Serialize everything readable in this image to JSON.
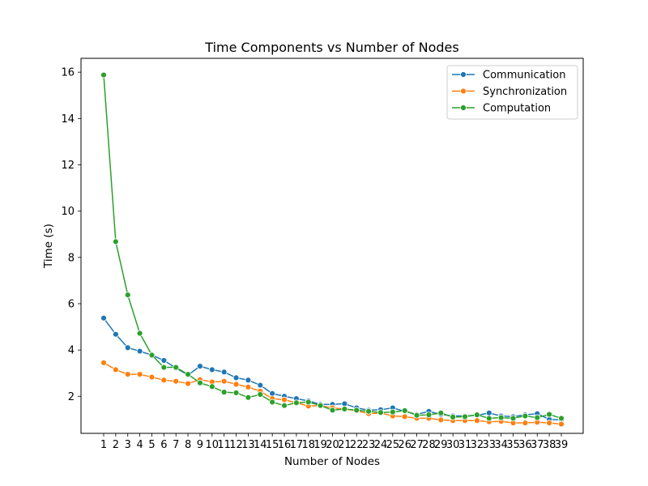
{
  "chart_data": {
    "type": "line",
    "title": "Time Components vs Number of Nodes",
    "xlabel": "Number of Nodes",
    "ylabel": "Time (s)",
    "categories": [
      "1",
      "2",
      "3",
      "4",
      "5",
      "6",
      "7",
      "8",
      "9",
      "10",
      "11",
      "12",
      "13",
      "14",
      "15",
      "16",
      "17",
      "18",
      "19",
      "20",
      "21",
      "22",
      "23",
      "24",
      "25",
      "26",
      "27",
      "28",
      "29",
      "30",
      "31",
      "32",
      "33",
      "34",
      "35",
      "36",
      "37",
      "38",
      "39"
    ],
    "ylim": [
      0.4,
      16.6
    ],
    "yticks": [
      2,
      4,
      6,
      8,
      10,
      12,
      14,
      16
    ],
    "ytick_labels": [
      "2",
      "4",
      "6",
      "8",
      "10",
      "12",
      "14",
      "16"
    ],
    "legend_position": "upper right",
    "grid": false,
    "series": [
      {
        "name": "Communication",
        "color": "#1f77b4",
        "values": [
          5.38,
          4.68,
          4.1,
          3.95,
          3.78,
          3.55,
          3.22,
          2.92,
          3.3,
          3.15,
          3.05,
          2.8,
          2.7,
          2.48,
          2.12,
          2.0,
          1.9,
          1.8,
          1.65,
          1.65,
          1.68,
          1.5,
          1.4,
          1.42,
          1.5,
          1.35,
          1.22,
          1.35,
          1.22,
          1.15,
          1.15,
          1.18,
          1.28,
          1.15,
          1.12,
          1.2,
          1.25,
          1.0,
          0.98
        ]
      },
      {
        "name": "Synchronization",
        "color": "#ff7f0e",
        "values": [
          3.45,
          3.15,
          2.95,
          2.95,
          2.83,
          2.7,
          2.65,
          2.55,
          2.72,
          2.62,
          2.65,
          2.52,
          2.4,
          2.22,
          1.9,
          1.85,
          1.72,
          1.58,
          1.6,
          1.5,
          1.45,
          1.38,
          1.25,
          1.28,
          1.15,
          1.12,
          1.05,
          1.05,
          0.98,
          0.95,
          0.95,
          0.95,
          0.9,
          0.92,
          0.85,
          0.85,
          0.88,
          0.85,
          0.8
        ]
      },
      {
        "name": "Computation",
        "color": "#2ca02c",
        "values": [
          15.88,
          8.68,
          6.38,
          4.72,
          3.78,
          3.25,
          3.25,
          2.95,
          2.58,
          2.42,
          2.18,
          2.15,
          1.95,
          2.08,
          1.75,
          1.6,
          1.72,
          1.75,
          1.6,
          1.4,
          1.45,
          1.4,
          1.35,
          1.3,
          1.32,
          1.38,
          1.18,
          1.2,
          1.28,
          1.1,
          1.12,
          1.2,
          1.05,
          1.08,
          1.05,
          1.15,
          1.08,
          1.22,
          1.05
        ]
      }
    ]
  }
}
